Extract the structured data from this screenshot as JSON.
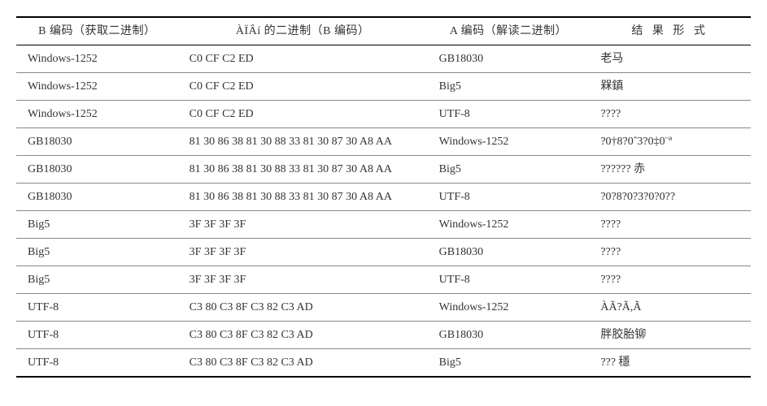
{
  "table": {
    "columns": [
      "B 编码（获取二进制）",
      "ÀÏÂí 的二进制（B 编码）",
      "A 编码（解读二进制）",
      "结 果 形 式"
    ],
    "rows": [
      {
        "b": "Windows-1252",
        "hex": "C0 CF C2 ED",
        "a": "GB18030",
        "result": "老马"
      },
      {
        "b": "Windows-1252",
        "hex": "C0 CF C2 ED",
        "a": "Big5",
        "result": "槑鎮"
      },
      {
        "b": "Windows-1252",
        "hex": "C0 CF C2 ED",
        "a": "UTF-8",
        "result": "????"
      },
      {
        "b": "GB18030",
        "hex": "81 30 86 38 81 30 88 33 81 30 87 30 A8 AA",
        "a": "Windows-1252",
        "result": "?0†8?0ˆ3?0‡0¨ª"
      },
      {
        "b": "GB18030",
        "hex": "81 30 86 38 81 30 88 33 81 30 87 30 A8 AA",
        "a": "Big5",
        "result": "?????? 赤"
      },
      {
        "b": "GB18030",
        "hex": "81 30 86 38 81 30 88 33 81 30 87 30 A8 AA",
        "a": "UTF-8",
        "result": "?0?8?0?3?0?0??"
      },
      {
        "b": "Big5",
        "hex": "3F 3F 3F 3F",
        "a": "Windows-1252",
        "result": "????"
      },
      {
        "b": "Big5",
        "hex": "3F 3F 3F 3F",
        "a": "GB18030",
        "result": "????"
      },
      {
        "b": "Big5",
        "hex": "3F 3F 3F 3F",
        "a": "UTF-8",
        "result": "????"
      },
      {
        "b": "UTF-8",
        "hex": "C3 80 C3 8F C3 82 C3 AD",
        "a": "Windows-1252",
        "result": "ÀÃ?Ã,Ã"
      },
      {
        "b": "UTF-8",
        "hex": "C3 80 C3 8F C3 82 C3 AD",
        "a": "GB18030",
        "result": "胖胶胎铆"
      },
      {
        "b": "UTF-8",
        "hex": "C3 80 C3 8F C3 82 C3 AD",
        "a": "Big5",
        "result": "??? 穩"
      }
    ]
  }
}
